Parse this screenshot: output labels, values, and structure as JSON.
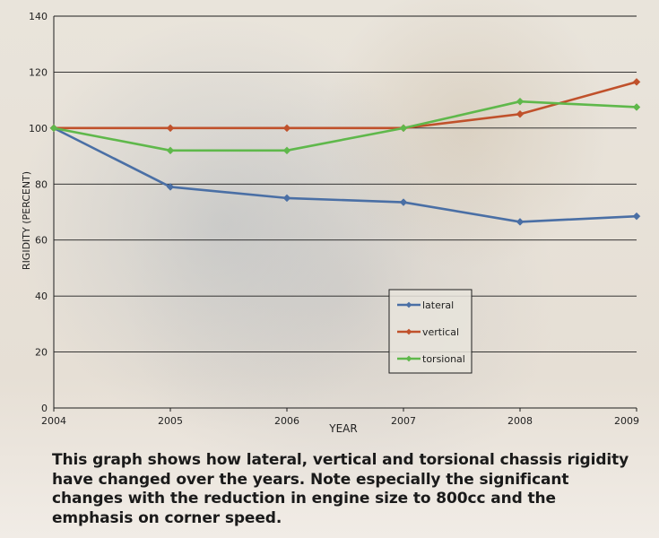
{
  "chart_data": {
    "type": "line",
    "categories": [
      "2004",
      "2005",
      "2006",
      "2007",
      "2008",
      "2009"
    ],
    "series": [
      {
        "name": "lateral",
        "color": "#4a6fa5",
        "values": [
          100,
          79,
          75,
          73.5,
          66.5,
          68.5
        ]
      },
      {
        "name": "vertical",
        "color": "#c0512b",
        "values": [
          100,
          100,
          100,
          100,
          105,
          116.5
        ]
      },
      {
        "name": "torsional",
        "color": "#5fb84b",
        "values": [
          100,
          92,
          92,
          100,
          109.5,
          107.5
        ]
      }
    ],
    "y_ticks": [
      "0",
      "20",
      "40",
      "60",
      "80",
      "100",
      "120",
      "140"
    ],
    "xlabel": "YEAR",
    "ylabel": "RIGIDITY (PERCENT)",
    "ylim": [
      0,
      140
    ],
    "grid": "horizontal",
    "legend_position": "lower-right, inside plot"
  },
  "caption": "This graph shows how lateral, vertical and torsional chassis rigidity have changed over the years. Note especially the significant changes with the reduction in engine size to 800cc and the emphasis on corner speed."
}
